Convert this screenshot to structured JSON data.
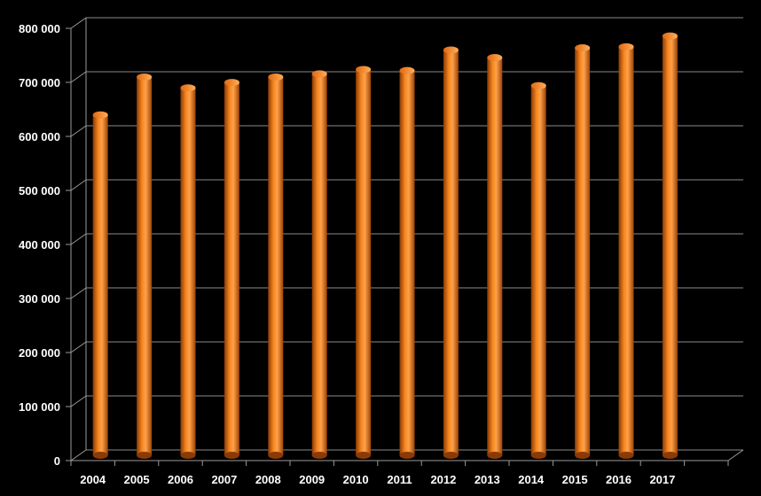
{
  "chart_data": {
    "type": "bar",
    "title": "",
    "xlabel": "",
    "ylabel": "",
    "categories": [
      "2004",
      "2005",
      "2006",
      "2007",
      "2008",
      "2009",
      "2010",
      "2011",
      "2012",
      "2013",
      "2014",
      "2015",
      "2016",
      "2017"
    ],
    "values": [
      630000,
      700000,
      680000,
      690000,
      700000,
      706000,
      714000,
      712000,
      750000,
      736000,
      684000,
      754000,
      756000,
      776000
    ],
    "ylim": [
      0,
      800000
    ],
    "yticks": [
      0,
      100000,
      200000,
      300000,
      400000,
      500000,
      600000,
      700000,
      800000
    ],
    "ytick_labels": [
      "0",
      "100 000",
      "200 000",
      "300 000",
      "400 000",
      "500 000",
      "600 000",
      "700 000",
      "800 000"
    ],
    "grid": true,
    "legend": "none",
    "style": "3d-cylinder",
    "bar_color": "#f07818",
    "background": "#000000"
  }
}
